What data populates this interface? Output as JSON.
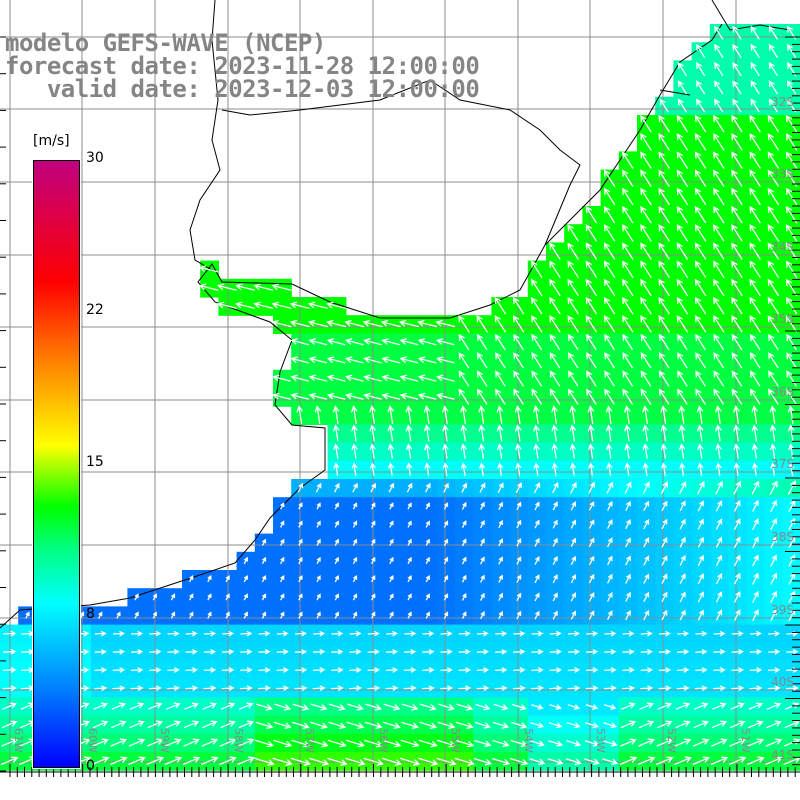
{
  "title": {
    "line1": "modelo GEFS-WAVE (NCEP)",
    "line2": "forecast date: 2023-11-28 12:00:00",
    "line3": "   valid date: 2023-12-03 12:00:00"
  },
  "colorbar": {
    "unit": "[m/s]",
    "ticks": [
      "30",
      "22",
      "15",
      "8",
      "0"
    ],
    "range": [
      0,
      30
    ]
  },
  "axes": {
    "longitude_labels": [
      "61W",
      "60W",
      "59W",
      "58W",
      "57W",
      "56W",
      "55W",
      "54W",
      "53W",
      "52W",
      "51W"
    ],
    "latitude_labels": [
      "32S",
      "33S",
      "34S",
      "35S",
      "36S",
      "37S",
      "38S",
      "39S",
      "40S",
      "41S"
    ]
  },
  "colors": {
    "label_gray": "#858585",
    "grid": "#8c8c8c",
    "coast": "#000000"
  }
}
